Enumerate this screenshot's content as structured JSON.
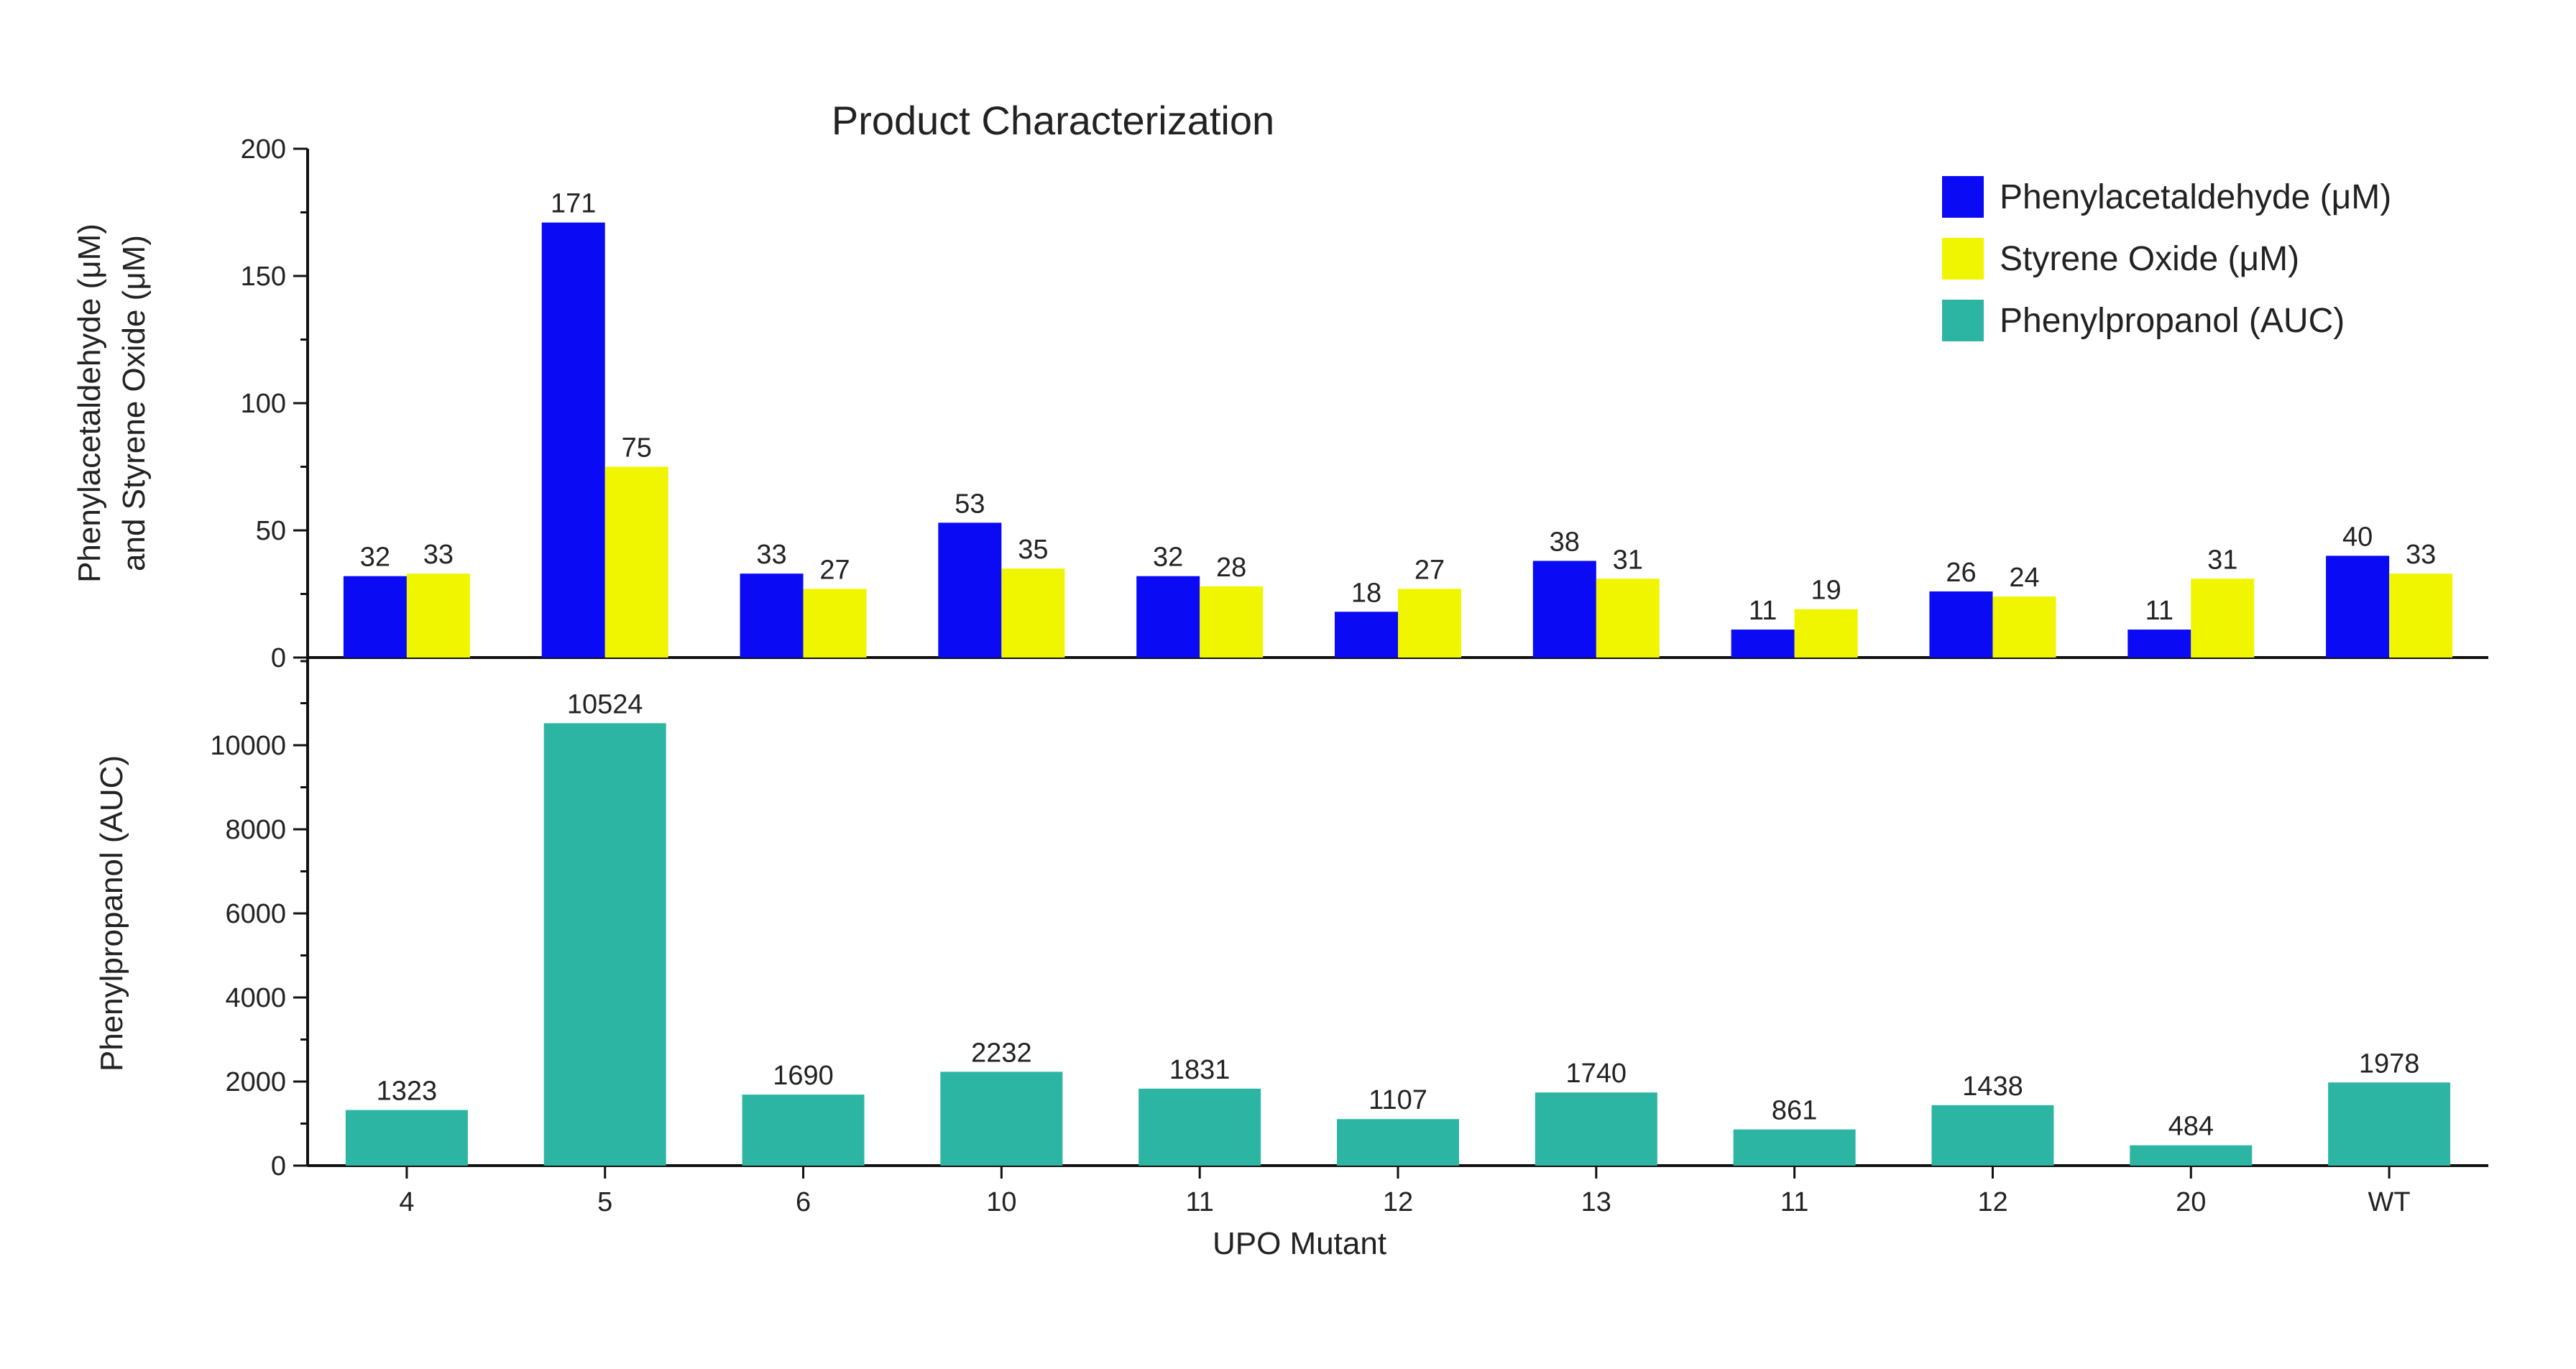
{
  "chart_data": {
    "type": "bar",
    "title": "Product Characterization",
    "xlabel": "UPO Mutant",
    "categories": [
      "4",
      "5",
      "6",
      "10",
      "11",
      "12",
      "13",
      "11",
      "12",
      "20",
      "WT"
    ],
    "panels": [
      {
        "ylabel_lines": [
          "Phenylacetaldehyde (μM)",
          "and Styrene Oxide (μM)"
        ],
        "ylim": [
          0,
          200
        ],
        "yticks": [
          0,
          50,
          100,
          150,
          200
        ],
        "series": [
          {
            "name": "Phenylacetaldehyde (μM)",
            "color": "#0a0af5",
            "values": [
              32,
              171,
              33,
              53,
              32,
              18,
              38,
              11,
              26,
              11,
              40
            ]
          },
          {
            "name": "Styrene Oxide (μM)",
            "color": "#f0f500",
            "values": [
              33,
              75,
              27,
              35,
              28,
              27,
              31,
              19,
              24,
              31,
              33
            ]
          }
        ]
      },
      {
        "ylabel_lines": [
          "Phenylpropanol (AUC)"
        ],
        "ylim": [
          0,
          12000
        ],
        "yticks": [
          0,
          2000,
          4000,
          6000,
          8000,
          10000
        ],
        "series": [
          {
            "name": "Phenylpropanol (AUC)",
            "color": "#2db5a3",
            "values": [
              1323,
              10524,
              1690,
              2232,
              1831,
              1107,
              1740,
              861,
              1438,
              484,
              1978
            ]
          }
        ]
      }
    ],
    "legend": {
      "position": "top-right",
      "entries": [
        {
          "label": "Phenylacetaldehyde (μM)",
          "color": "#0a0af5"
        },
        {
          "label": "Styrene Oxide (μM)",
          "color": "#f0f500"
        },
        {
          "label": "Phenylpropanol (AUC)",
          "color": "#2db5a3"
        }
      ]
    },
    "grid": false
  }
}
